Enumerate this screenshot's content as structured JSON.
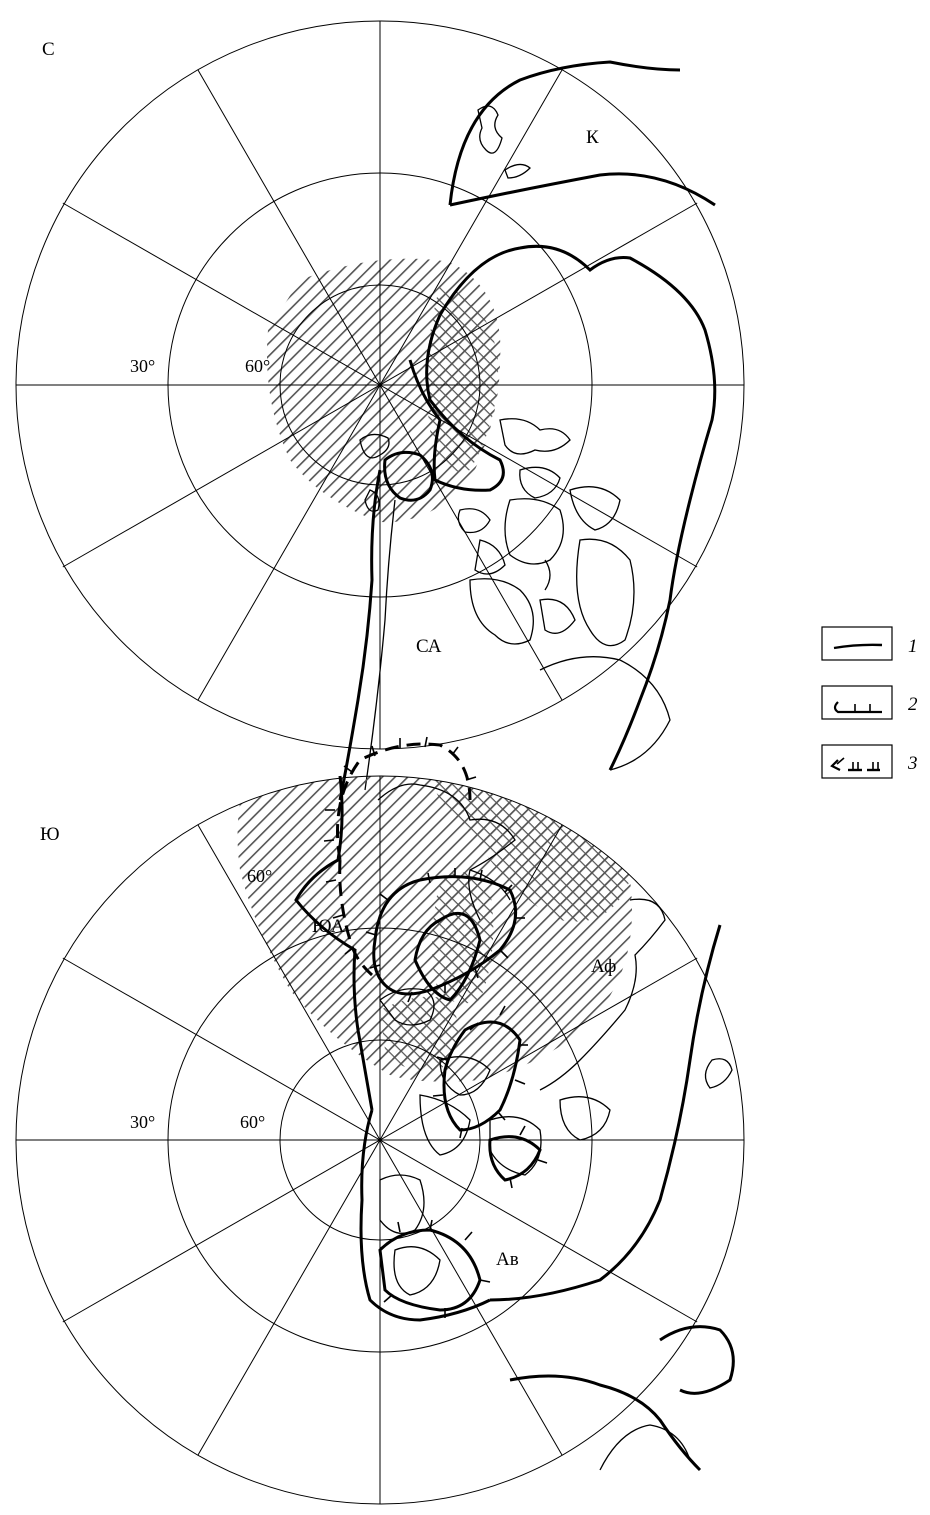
{
  "north_map": {
    "hemisphere_label": "С",
    "lat_labels": [
      "30°",
      "60°"
    ],
    "region_labels": {
      "k": "К",
      "sa": "СА"
    }
  },
  "south_map": {
    "hemisphere_label": "Ю",
    "lat_labels": [
      "60°",
      "30°",
      "60°"
    ],
    "region_labels": {
      "yua": "ЮА",
      "af": "Аф",
      "av": "Ав"
    }
  },
  "legend": {
    "items": [
      {
        "number": "1",
        "symbol": "coastline-line"
      },
      {
        "number": "2",
        "symbol": "glacier-boundary-line"
      },
      {
        "number": "3",
        "symbol": "uncertain-glacier-boundary-line"
      }
    ]
  },
  "colors": {
    "ink": "#000000",
    "hatch": "#555555",
    "background": "#ffffff"
  }
}
